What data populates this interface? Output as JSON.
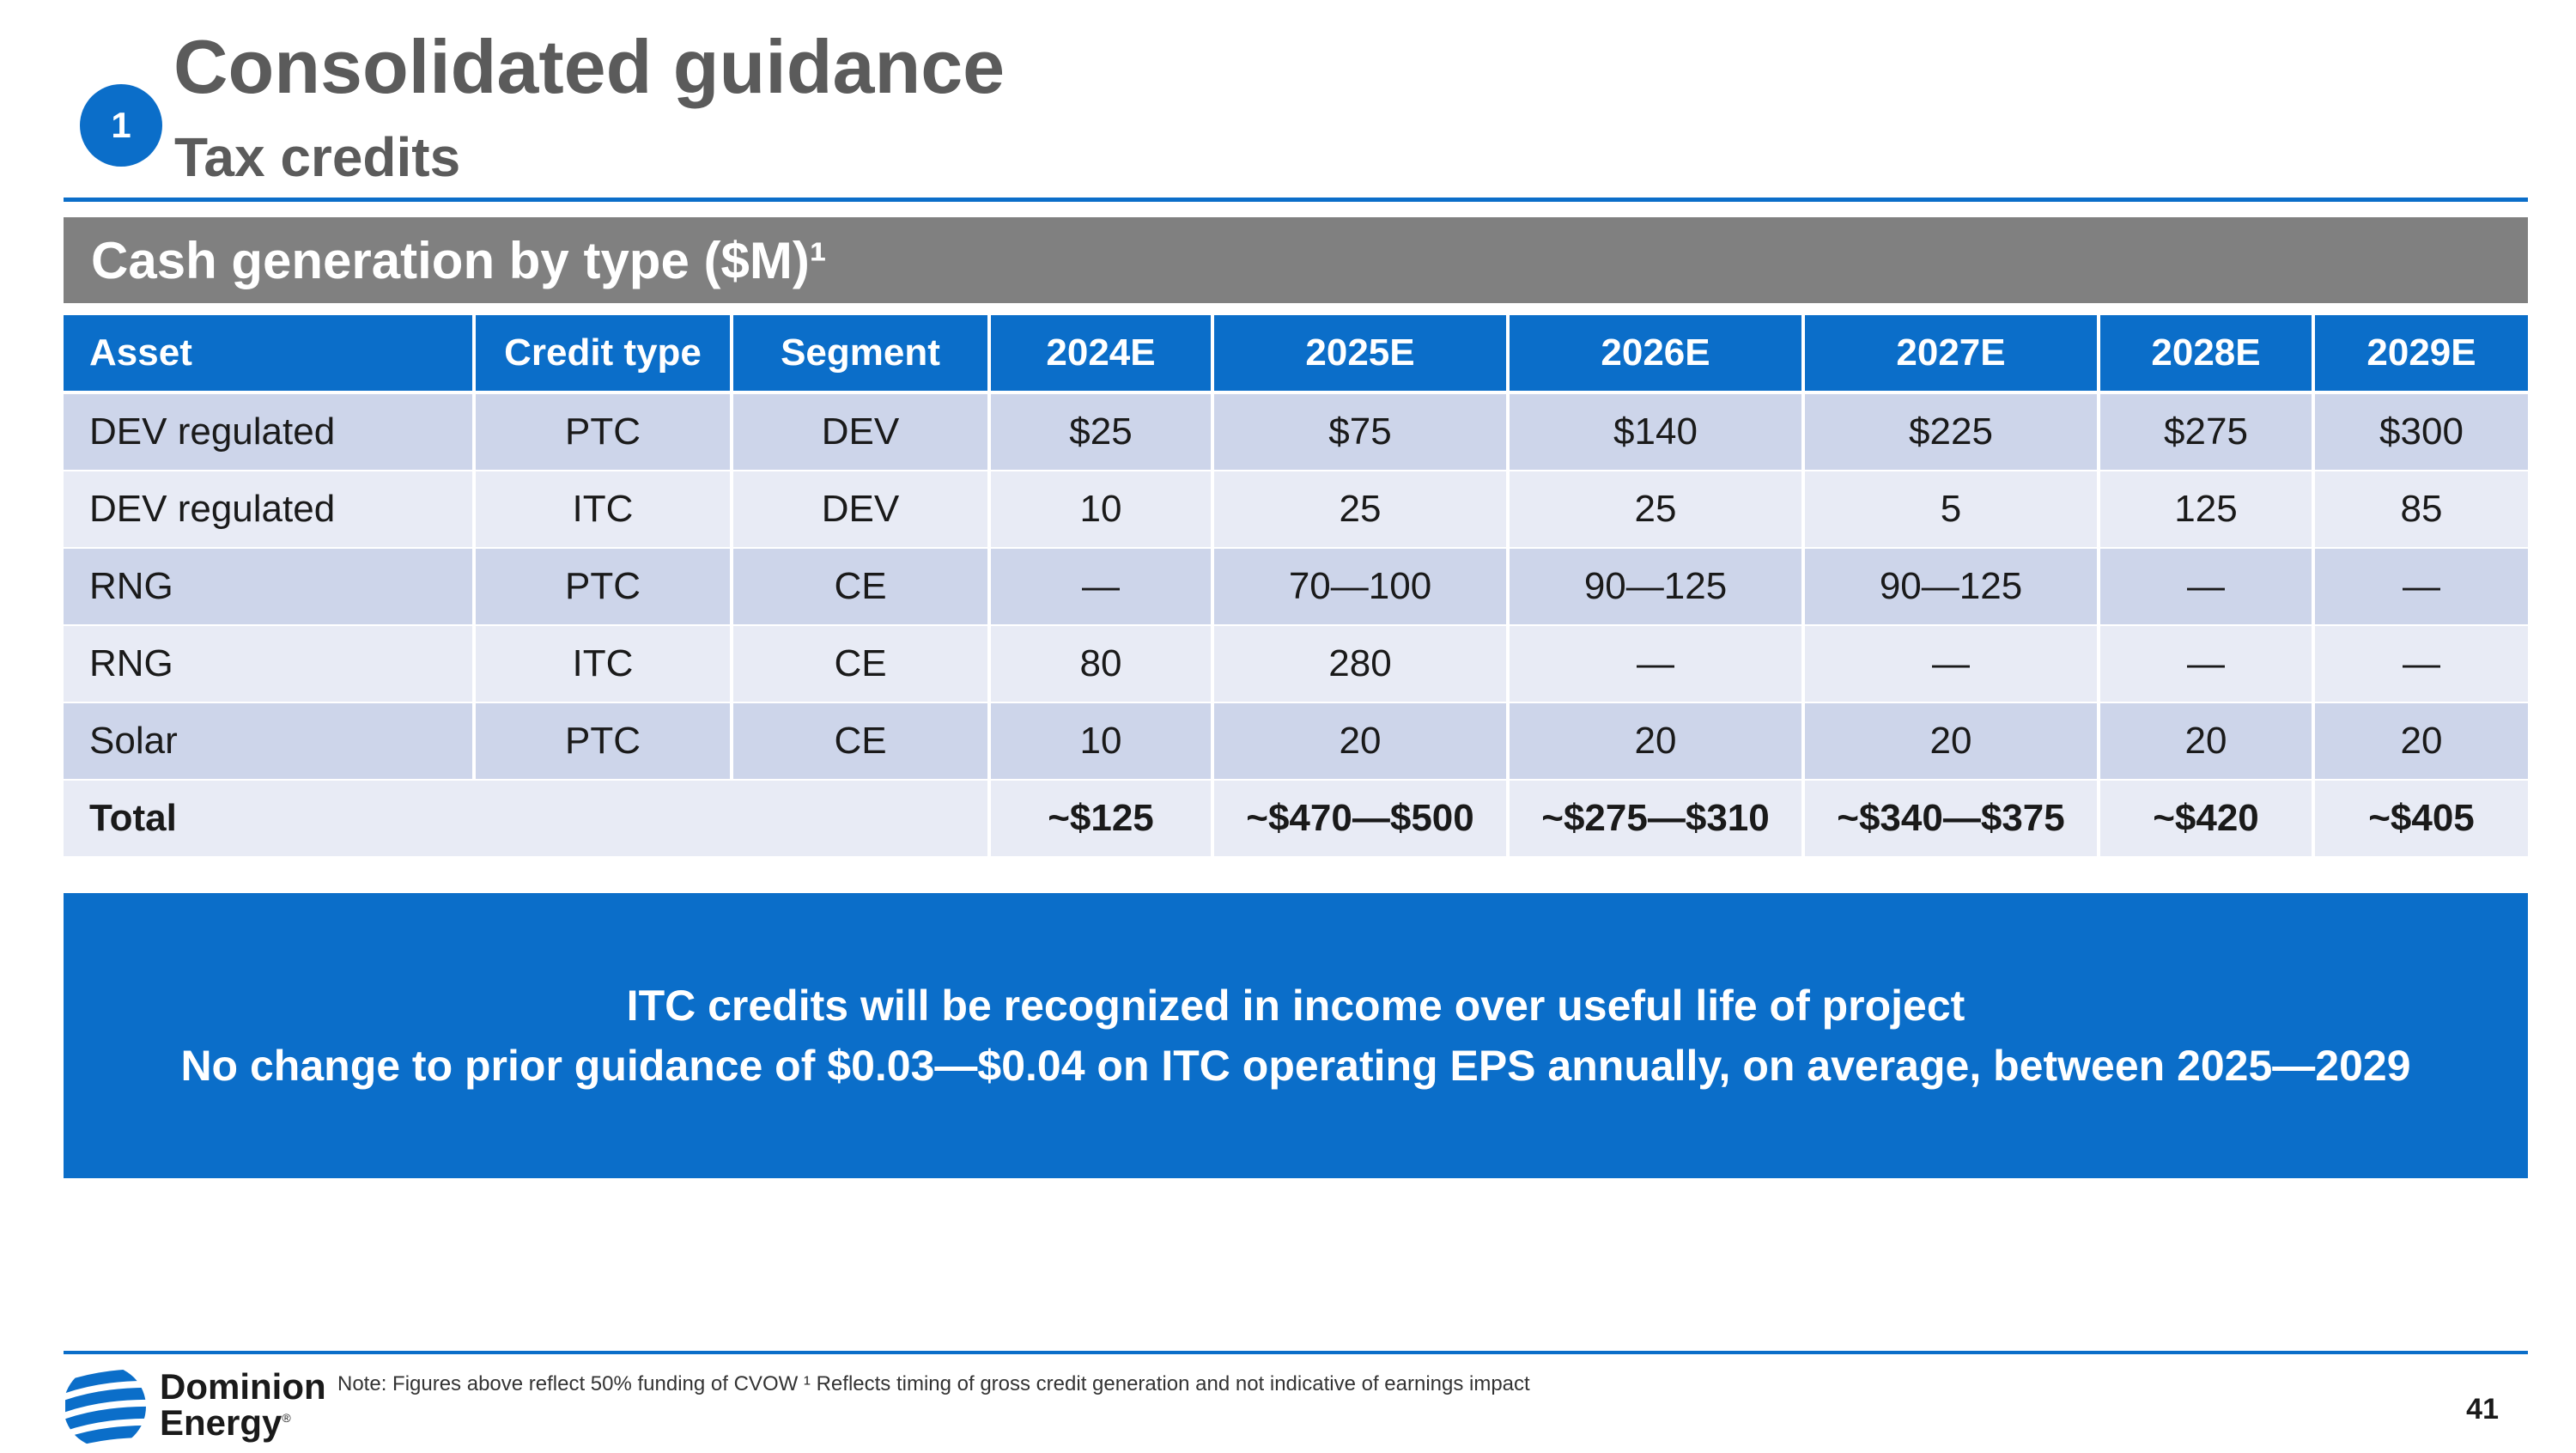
{
  "badge": "1",
  "title": "Consolidated guidance",
  "subtitle": "Tax credits",
  "section_title": "Cash generation by type ($M)¹",
  "table": {
    "headers": [
      "Asset",
      "Credit type",
      "Segment",
      "2024E",
      "2025E",
      "2026E",
      "2027E",
      "2028E",
      "2029E"
    ],
    "rows": [
      [
        "DEV regulated",
        "PTC",
        "DEV",
        "$25",
        "$75",
        "$140",
        "$225",
        "$275",
        "$300"
      ],
      [
        "DEV regulated",
        "ITC",
        "DEV",
        "10",
        "25",
        "25",
        "5",
        "125",
        "85"
      ],
      [
        "RNG",
        "PTC",
        "CE",
        "—",
        "70—100",
        "90—125",
        "90—125",
        "—",
        "—"
      ],
      [
        "RNG",
        "ITC",
        "CE",
        "80",
        "280",
        "—",
        "—",
        "—",
        "—"
      ],
      [
        "Solar",
        "PTC",
        "CE",
        "10",
        "20",
        "20",
        "20",
        "20",
        "20"
      ]
    ],
    "total": {
      "label": "Total",
      "values": [
        "~$125",
        "~$470—$500",
        "~$275—$310",
        "~$340—$375",
        "~$420",
        "~$405"
      ]
    }
  },
  "callout": {
    "line1": "ITC credits will be recognized in income over useful life of project",
    "line2": "No change to prior guidance of $0.03—$0.04 on ITC operating EPS annually, on average, between 2025—2029"
  },
  "footer": {
    "logo_line1": "Dominion",
    "logo_line2": "Energy",
    "logo_mark": "®",
    "logo_icon": "dominion-energy-logo-icon",
    "note": "Note: Figures above reflect 50% funding of CVOW ¹ Reflects timing of gross credit generation and not indicative of earnings impact",
    "page_number": "41"
  },
  "colors": {
    "brand_blue": "#0b6ec9",
    "section_gray": "#808080",
    "row_dark": "#cdd5ea",
    "row_light": "#e8ebf5",
    "title_gray": "#5b5b5b"
  }
}
